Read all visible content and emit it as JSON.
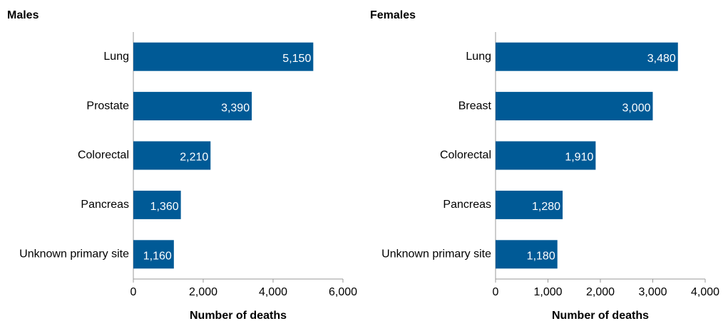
{
  "chart_data": [
    {
      "type": "hbar",
      "title": "Males",
      "xlabel": "Number of deaths",
      "categories": [
        "Lung",
        "Prostate",
        "Colorectal",
        "Pancreas",
        "Unknown primary site"
      ],
      "values": [
        5150,
        3390,
        2210,
        1360,
        1160
      ],
      "value_labels": [
        "5,150",
        "3,390",
        "2,210",
        "1,360",
        "1,160"
      ],
      "color": "#005a96",
      "xlim": [
        0,
        6000
      ],
      "xticks": [
        0,
        {
          "value": 2000,
          "label": "2,000"
        },
        {
          "value": 4000,
          "label": "4,000"
        },
        {
          "value": 6000,
          "label": "6,000"
        }
      ]
    },
    {
      "type": "hbar",
      "title": "Females",
      "xlabel": "Number of deaths",
      "categories": [
        "Lung",
        "Breast",
        "Colorectal",
        "Pancreas",
        "Unknown primary site"
      ],
      "values": [
        3480,
        3000,
        1910,
        1280,
        1180
      ],
      "value_labels": [
        "3,480",
        "3,000",
        "1,910",
        "1,280",
        "1,180"
      ],
      "color": "#005a96",
      "xlim": [
        0,
        4000
      ],
      "xticks": [
        0,
        {
          "value": 1000,
          "label": "1,000"
        },
        {
          "value": 2000,
          "label": "2,000"
        },
        {
          "value": 3000,
          "label": "3,000"
        },
        {
          "value": 4000,
          "label": "4,000"
        }
      ]
    }
  ]
}
